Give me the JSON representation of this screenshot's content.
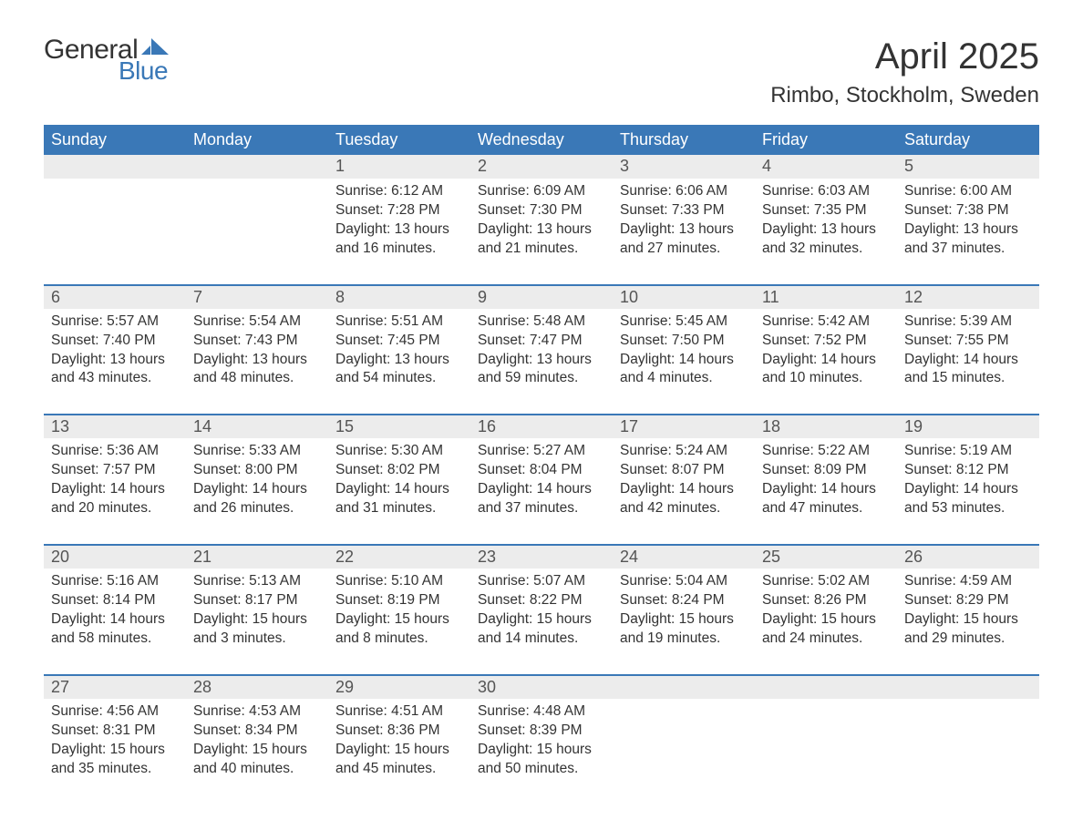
{
  "brand": {
    "word1": "General",
    "word2": "Blue",
    "accent_color": "#3a78b7"
  },
  "title": "April 2025",
  "location": "Rimbo, Stockholm, Sweden",
  "colors": {
    "header_bg": "#3a78b7",
    "header_text": "#ffffff",
    "row_accent_border": "#3a78b7",
    "daynum_bg": "#ececec",
    "body_text": "#333333",
    "page_bg": "#ffffff"
  },
  "day_headers": [
    "Sunday",
    "Monday",
    "Tuesday",
    "Wednesday",
    "Thursday",
    "Friday",
    "Saturday"
  ],
  "weeks": [
    [
      null,
      null,
      {
        "n": "1",
        "sunrise": "6:12 AM",
        "sunset": "7:28 PM",
        "daylight": "13 hours and 16 minutes."
      },
      {
        "n": "2",
        "sunrise": "6:09 AM",
        "sunset": "7:30 PM",
        "daylight": "13 hours and 21 minutes."
      },
      {
        "n": "3",
        "sunrise": "6:06 AM",
        "sunset": "7:33 PM",
        "daylight": "13 hours and 27 minutes."
      },
      {
        "n": "4",
        "sunrise": "6:03 AM",
        "sunset": "7:35 PM",
        "daylight": "13 hours and 32 minutes."
      },
      {
        "n": "5",
        "sunrise": "6:00 AM",
        "sunset": "7:38 PM",
        "daylight": "13 hours and 37 minutes."
      }
    ],
    [
      {
        "n": "6",
        "sunrise": "5:57 AM",
        "sunset": "7:40 PM",
        "daylight": "13 hours and 43 minutes."
      },
      {
        "n": "7",
        "sunrise": "5:54 AM",
        "sunset": "7:43 PM",
        "daylight": "13 hours and 48 minutes."
      },
      {
        "n": "8",
        "sunrise": "5:51 AM",
        "sunset": "7:45 PM",
        "daylight": "13 hours and 54 minutes."
      },
      {
        "n": "9",
        "sunrise": "5:48 AM",
        "sunset": "7:47 PM",
        "daylight": "13 hours and 59 minutes."
      },
      {
        "n": "10",
        "sunrise": "5:45 AM",
        "sunset": "7:50 PM",
        "daylight": "14 hours and 4 minutes."
      },
      {
        "n": "11",
        "sunrise": "5:42 AM",
        "sunset": "7:52 PM",
        "daylight": "14 hours and 10 minutes."
      },
      {
        "n": "12",
        "sunrise": "5:39 AM",
        "sunset": "7:55 PM",
        "daylight": "14 hours and 15 minutes."
      }
    ],
    [
      {
        "n": "13",
        "sunrise": "5:36 AM",
        "sunset": "7:57 PM",
        "daylight": "14 hours and 20 minutes."
      },
      {
        "n": "14",
        "sunrise": "5:33 AM",
        "sunset": "8:00 PM",
        "daylight": "14 hours and 26 minutes."
      },
      {
        "n": "15",
        "sunrise": "5:30 AM",
        "sunset": "8:02 PM",
        "daylight": "14 hours and 31 minutes."
      },
      {
        "n": "16",
        "sunrise": "5:27 AM",
        "sunset": "8:04 PM",
        "daylight": "14 hours and 37 minutes."
      },
      {
        "n": "17",
        "sunrise": "5:24 AM",
        "sunset": "8:07 PM",
        "daylight": "14 hours and 42 minutes."
      },
      {
        "n": "18",
        "sunrise": "5:22 AM",
        "sunset": "8:09 PM",
        "daylight": "14 hours and 47 minutes."
      },
      {
        "n": "19",
        "sunrise": "5:19 AM",
        "sunset": "8:12 PM",
        "daylight": "14 hours and 53 minutes."
      }
    ],
    [
      {
        "n": "20",
        "sunrise": "5:16 AM",
        "sunset": "8:14 PM",
        "daylight": "14 hours and 58 minutes."
      },
      {
        "n": "21",
        "sunrise": "5:13 AM",
        "sunset": "8:17 PM",
        "daylight": "15 hours and 3 minutes."
      },
      {
        "n": "22",
        "sunrise": "5:10 AM",
        "sunset": "8:19 PM",
        "daylight": "15 hours and 8 minutes."
      },
      {
        "n": "23",
        "sunrise": "5:07 AM",
        "sunset": "8:22 PM",
        "daylight": "15 hours and 14 minutes."
      },
      {
        "n": "24",
        "sunrise": "5:04 AM",
        "sunset": "8:24 PM",
        "daylight": "15 hours and 19 minutes."
      },
      {
        "n": "25",
        "sunrise": "5:02 AM",
        "sunset": "8:26 PM",
        "daylight": "15 hours and 24 minutes."
      },
      {
        "n": "26",
        "sunrise": "4:59 AM",
        "sunset": "8:29 PM",
        "daylight": "15 hours and 29 minutes."
      }
    ],
    [
      {
        "n": "27",
        "sunrise": "4:56 AM",
        "sunset": "8:31 PM",
        "daylight": "15 hours and 35 minutes."
      },
      {
        "n": "28",
        "sunrise": "4:53 AM",
        "sunset": "8:34 PM",
        "daylight": "15 hours and 40 minutes."
      },
      {
        "n": "29",
        "sunrise": "4:51 AM",
        "sunset": "8:36 PM",
        "daylight": "15 hours and 45 minutes."
      },
      {
        "n": "30",
        "sunrise": "4:48 AM",
        "sunset": "8:39 PM",
        "daylight": "15 hours and 50 minutes."
      },
      null,
      null,
      null
    ]
  ],
  "labels": {
    "sunrise": "Sunrise: ",
    "sunset": "Sunset: ",
    "daylight": "Daylight: "
  }
}
